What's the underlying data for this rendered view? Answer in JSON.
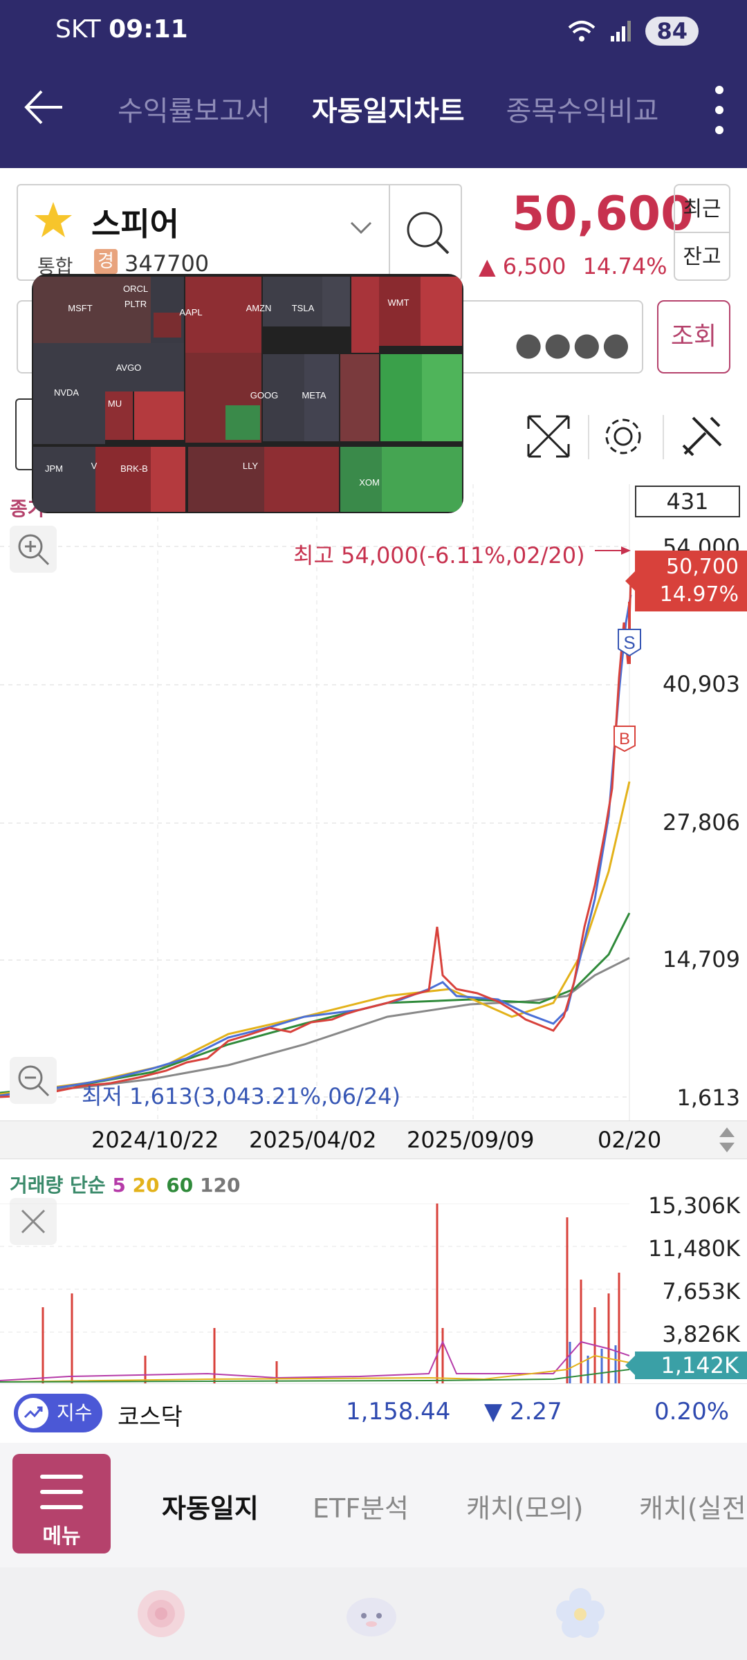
{
  "status": {
    "carrier": "SKT",
    "time": "09:11",
    "battery": "84"
  },
  "nav": {
    "tabs": [
      "수익률보고서",
      "자동일지차트",
      "종목수익비교"
    ],
    "active": 1
  },
  "stock": {
    "name": "스피어",
    "market": "통합",
    "badge": "경",
    "code": "347700",
    "price": "50,600",
    "change": "6,500",
    "change_pct": "14.74%",
    "recent_label": "최근",
    "balance_label": "잔고",
    "password_mask": "●●●●",
    "query_label": "조회"
  },
  "chart": {
    "series_label": "종가",
    "period_badge": "431",
    "y_ticks": [
      "54,000",
      "40,903",
      "27,806",
      "14,709",
      "1,613"
    ],
    "last_price": "50,700",
    "last_pct": "14.97%",
    "high_annotation": "최고 54,000(-6.11%,02/20)",
    "low_annotation": "최저 1,613(3,043.21%,06/24)",
    "x_ticks": [
      "2024/10/22",
      "2025/04/02",
      "2025/09/09",
      "02/20"
    ],
    "markers": {
      "sell": "S",
      "buy": "B"
    }
  },
  "volume": {
    "title_prefix": "거래량 단순",
    "ma": [
      "5",
      "20",
      "60",
      "120"
    ],
    "ma_colors": [
      "#b53aa8",
      "#e3b21a",
      "#2f8a3a",
      "#777777"
    ],
    "y_ticks": [
      "15,306K",
      "11,480K",
      "7,653K",
      "3,826K"
    ],
    "last": "1,142K"
  },
  "index": {
    "pill": "지수",
    "name": "코스닥",
    "value": "1,158.44",
    "change": "▼ 2.27",
    "pct": "0.20%"
  },
  "menu": {
    "button": "메뉴",
    "items": [
      "자동일지",
      "ETF분석",
      "캐치(모의)",
      "캐치(실전)"
    ],
    "active": 0
  },
  "colors": {
    "header": "#2e2a6b",
    "accent": "#b5426c",
    "up": "#c7314e",
    "down": "#2f4ab0"
  }
}
